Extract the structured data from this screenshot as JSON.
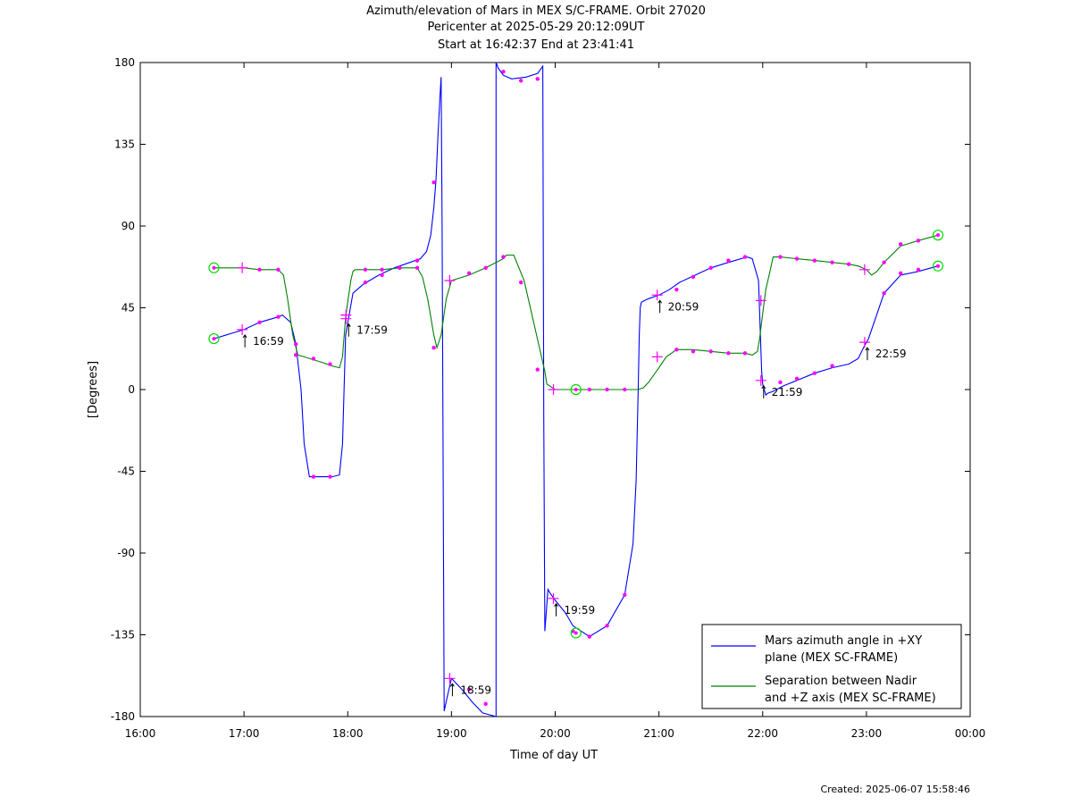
{
  "chart_data": {
    "type": "line",
    "title": "Azimuth/elevation of Mars in MEX S/C-FRAME.  Orbit 27020",
    "subtitle_lines": [
      "Pericenter at 2025-05-29 20:12:09UT",
      "Start at 16:42:37 End at 23:41:41"
    ],
    "xlabel": "Time of day UT",
    "ylabel": "[Degrees]",
    "x_unit": "hours of day UT",
    "xlim": [
      16,
      24
    ],
    "ylim": [
      -180,
      180
    ],
    "x_ticks": [
      16,
      17,
      18,
      19,
      20,
      21,
      22,
      23,
      24
    ],
    "x_tick_labels": [
      "16:00",
      "17:00",
      "18:00",
      "19:00",
      "20:00",
      "21:00",
      "22:00",
      "23:00",
      "00:00"
    ],
    "y_ticks": [
      180,
      135,
      90,
      45,
      0,
      -45,
      -90,
      -135,
      -180
    ],
    "y_tick_labels": [
      "180",
      "135",
      "90",
      "45",
      "0",
      "-45",
      "-90",
      "-135",
      "-180"
    ],
    "grid": false,
    "legend_position": "bottom-right",
    "series": [
      {
        "name": "Mars azimuth angle in +XY plane (MEX SC-FRAME)",
        "legend_lines": [
          "Mars azimuth angle in +XY",
          "plane (MEX SC-FRAME)"
        ],
        "color": "#0000ff",
        "x": [
          16.71,
          17.0,
          17.15,
          17.33,
          17.37,
          17.45,
          17.5,
          17.55,
          17.58,
          17.63,
          17.72,
          17.85,
          17.92,
          17.95,
          17.98,
          18.05,
          18.15,
          18.3,
          18.45,
          18.6,
          18.7,
          18.76,
          18.8,
          18.83,
          18.85,
          18.87,
          18.89,
          18.9,
          18.91,
          18.93,
          18.96,
          19.0,
          19.1,
          19.2,
          19.3,
          19.43,
          19.43,
          19.45,
          19.5,
          19.58,
          19.72,
          19.83,
          19.88,
          19.89,
          19.9,
          19.93,
          19.95,
          20.0,
          20.1,
          20.17,
          20.33,
          20.5,
          20.67,
          20.75,
          20.78,
          20.8,
          20.81,
          20.82,
          20.83,
          20.86,
          20.9,
          21.0,
          21.1,
          21.2,
          21.35,
          21.5,
          21.67,
          21.85,
          21.9,
          21.96,
          21.99,
          22.0,
          22.03,
          22.05,
          22.1,
          22.2,
          22.33,
          22.5,
          22.67,
          22.83,
          22.92,
          22.98,
          23.02,
          23.08,
          23.17,
          23.33,
          23.5,
          23.69
        ],
        "y": [
          28,
          33,
          37,
          40,
          41,
          37,
          25,
          0,
          -30,
          -48,
          -48,
          -48,
          -47,
          -30,
          30,
          53,
          58,
          63,
          67,
          70,
          72,
          76,
          85,
          100,
          115,
          140,
          162,
          172,
          90,
          -177,
          -169,
          -159,
          -165,
          -172,
          -178,
          -180,
          180,
          177,
          173,
          171,
          172,
          174,
          178,
          -15,
          -133,
          -110,
          -112,
          -116,
          -123,
          -130,
          -136,
          -130,
          -113,
          -85,
          -50,
          0,
          30,
          45,
          48,
          49,
          50,
          52,
          55,
          59,
          63,
          67,
          70,
          73,
          72,
          60,
          10,
          3,
          -3,
          -2,
          -1,
          2,
          5,
          9,
          12,
          14,
          17,
          24,
          28,
          38,
          53,
          63,
          65,
          68
        ]
      },
      {
        "name": "Separation between Nadir and +Z axis (MEX SC-FRAME)",
        "legend_lines": [
          "Separation between Nadir",
          "and +Z axis (MEX SC-FRAME)"
        ],
        "color": "#008000",
        "x": [
          16.71,
          17.0,
          17.15,
          17.33,
          17.38,
          17.42,
          17.47,
          17.52,
          17.58,
          17.75,
          17.85,
          17.92,
          17.95,
          17.98,
          18.03,
          18.05,
          18.07,
          18.15,
          18.33,
          18.5,
          18.67,
          18.72,
          18.77,
          18.8,
          18.83,
          18.86,
          18.9,
          18.95,
          19.0,
          19.17,
          19.33,
          19.5,
          19.53,
          19.6,
          19.7,
          19.8,
          19.9,
          19.92,
          20.0,
          20.2,
          20.33,
          20.5,
          20.67,
          20.8,
          20.85,
          20.9,
          21.0,
          21.07,
          21.17,
          21.33,
          21.5,
          21.67,
          21.83,
          21.9,
          21.95,
          21.97,
          22.0,
          22.03,
          22.07,
          22.1,
          22.17,
          22.33,
          22.5,
          22.67,
          22.83,
          22.92,
          23.0,
          23.05,
          23.1,
          23.17,
          23.33,
          23.5,
          23.69
        ],
        "y": [
          67,
          67,
          66,
          66,
          63,
          50,
          30,
          19,
          18,
          15,
          13,
          12,
          18,
          40,
          60,
          65,
          66,
          66,
          66,
          67,
          67,
          62,
          50,
          40,
          30,
          23,
          30,
          50,
          60,
          63,
          67,
          72,
          74,
          74,
          60,
          35,
          10,
          3,
          0,
          0,
          0,
          0,
          0,
          0,
          1,
          4,
          12,
          18,
          22,
          22,
          21,
          20,
          20,
          19,
          21,
          28,
          42,
          55,
          65,
          73,
          73,
          72,
          71,
          70,
          69,
          68,
          66,
          63,
          65,
          70,
          79,
          82,
          85
        ]
      }
    ],
    "time_marks": [
      {
        "label": "16:59",
        "x": 16.983,
        "y": 33
      },
      {
        "label": "17:59",
        "x": 17.983,
        "y": 39
      },
      {
        "label": "18:59",
        "x": 18.983,
        "y": -159
      },
      {
        "label": "19:59",
        "x": 19.983,
        "y": -115
      },
      {
        "label": "20:59",
        "x": 20.983,
        "y": 52
      },
      {
        "label": "21:59",
        "x": 21.983,
        "y": 5
      },
      {
        "label": "22:59",
        "x": 22.983,
        "y": 26
      }
    ],
    "plus_markers": [
      {
        "x": 16.983,
        "y": 33
      },
      {
        "x": 16.983,
        "y": 67
      },
      {
        "x": 17.983,
        "y": 39
      },
      {
        "x": 17.983,
        "y": 41
      },
      {
        "x": 18.983,
        "y": -159
      },
      {
        "x": 18.983,
        "y": 60
      },
      {
        "x": 19.983,
        "y": -115
      },
      {
        "x": 19.983,
        "y": 0
      },
      {
        "x": 20.983,
        "y": 52
      },
      {
        "x": 20.983,
        "y": 18
      },
      {
        "x": 21.983,
        "y": 5
      },
      {
        "x": 21.983,
        "y": 49
      },
      {
        "x": 22.983,
        "y": 26
      },
      {
        "x": 22.983,
        "y": 66
      }
    ],
    "circle_markers": [
      {
        "x": 16.71,
        "y": 28
      },
      {
        "x": 16.71,
        "y": 67
      },
      {
        "x": 20.2,
        "y": -134
      },
      {
        "x": 20.2,
        "y": 0
      },
      {
        "x": 23.69,
        "y": 68
      },
      {
        "x": 23.69,
        "y": 85
      }
    ],
    "dot_markers": [
      {
        "x": 17.15,
        "y": 37
      },
      {
        "x": 17.33,
        "y": 40
      },
      {
        "x": 17.5,
        "y": 25
      },
      {
        "x": 17.67,
        "y": -48
      },
      {
        "x": 17.83,
        "y": -48
      },
      {
        "x": 18.17,
        "y": 59
      },
      {
        "x": 18.33,
        "y": 63
      },
      {
        "x": 18.5,
        "y": 67
      },
      {
        "x": 18.67,
        "y": 71
      },
      {
        "x": 18.83,
        "y": 114
      },
      {
        "x": 19.17,
        "y": -165
      },
      {
        "x": 19.33,
        "y": -173
      },
      {
        "x": 19.5,
        "y": 175
      },
      {
        "x": 19.67,
        "y": 170
      },
      {
        "x": 19.83,
        "y": 171
      },
      {
        "x": 20.17,
        "y": -133
      },
      {
        "x": 20.33,
        "y": -136
      },
      {
        "x": 20.5,
        "y": -130
      },
      {
        "x": 20.67,
        "y": -113
      },
      {
        "x": 21.17,
        "y": 55
      },
      {
        "x": 21.33,
        "y": 62
      },
      {
        "x": 21.5,
        "y": 67
      },
      {
        "x": 21.67,
        "y": 71
      },
      {
        "x": 21.83,
        "y": 73
      },
      {
        "x": 22.17,
        "y": 4
      },
      {
        "x": 22.33,
        "y": 6
      },
      {
        "x": 22.5,
        "y": 9
      },
      {
        "x": 22.67,
        "y": 13
      },
      {
        "x": 23.17,
        "y": 53
      },
      {
        "x": 23.33,
        "y": 64
      },
      {
        "x": 23.5,
        "y": 66
      },
      {
        "x": 17.15,
        "y": 66
      },
      {
        "x": 17.33,
        "y": 66
      },
      {
        "x": 17.5,
        "y": 19
      },
      {
        "x": 17.67,
        "y": 17
      },
      {
        "x": 17.83,
        "y": 14
      },
      {
        "x": 18.17,
        "y": 66
      },
      {
        "x": 18.33,
        "y": 66
      },
      {
        "x": 18.5,
        "y": 67
      },
      {
        "x": 18.67,
        "y": 67
      },
      {
        "x": 18.83,
        "y": 23
      },
      {
        "x": 19.17,
        "y": 64
      },
      {
        "x": 19.33,
        "y": 67
      },
      {
        "x": 19.5,
        "y": 73
      },
      {
        "x": 19.67,
        "y": 59
      },
      {
        "x": 19.83,
        "y": 11
      },
      {
        "x": 20.33,
        "y": 0
      },
      {
        "x": 20.5,
        "y": 0
      },
      {
        "x": 20.67,
        "y": 0
      },
      {
        "x": 21.17,
        "y": 22
      },
      {
        "x": 21.33,
        "y": 21
      },
      {
        "x": 21.5,
        "y": 21
      },
      {
        "x": 21.67,
        "y": 20
      },
      {
        "x": 21.83,
        "y": 20
      },
      {
        "x": 22.17,
        "y": 73
      },
      {
        "x": 22.33,
        "y": 72
      },
      {
        "x": 22.5,
        "y": 71
      },
      {
        "x": 22.67,
        "y": 70
      },
      {
        "x": 22.83,
        "y": 69
      },
      {
        "x": 23.17,
        "y": 70
      },
      {
        "x": 23.33,
        "y": 80
      },
      {
        "x": 23.5,
        "y": 82
      }
    ],
    "marker_colors": {
      "plus": "#ff00ff",
      "dot": "#ff00ff",
      "circle": "#00dd00"
    }
  },
  "footer": {
    "created": "Created: 2025-06-07 15:58:46"
  }
}
